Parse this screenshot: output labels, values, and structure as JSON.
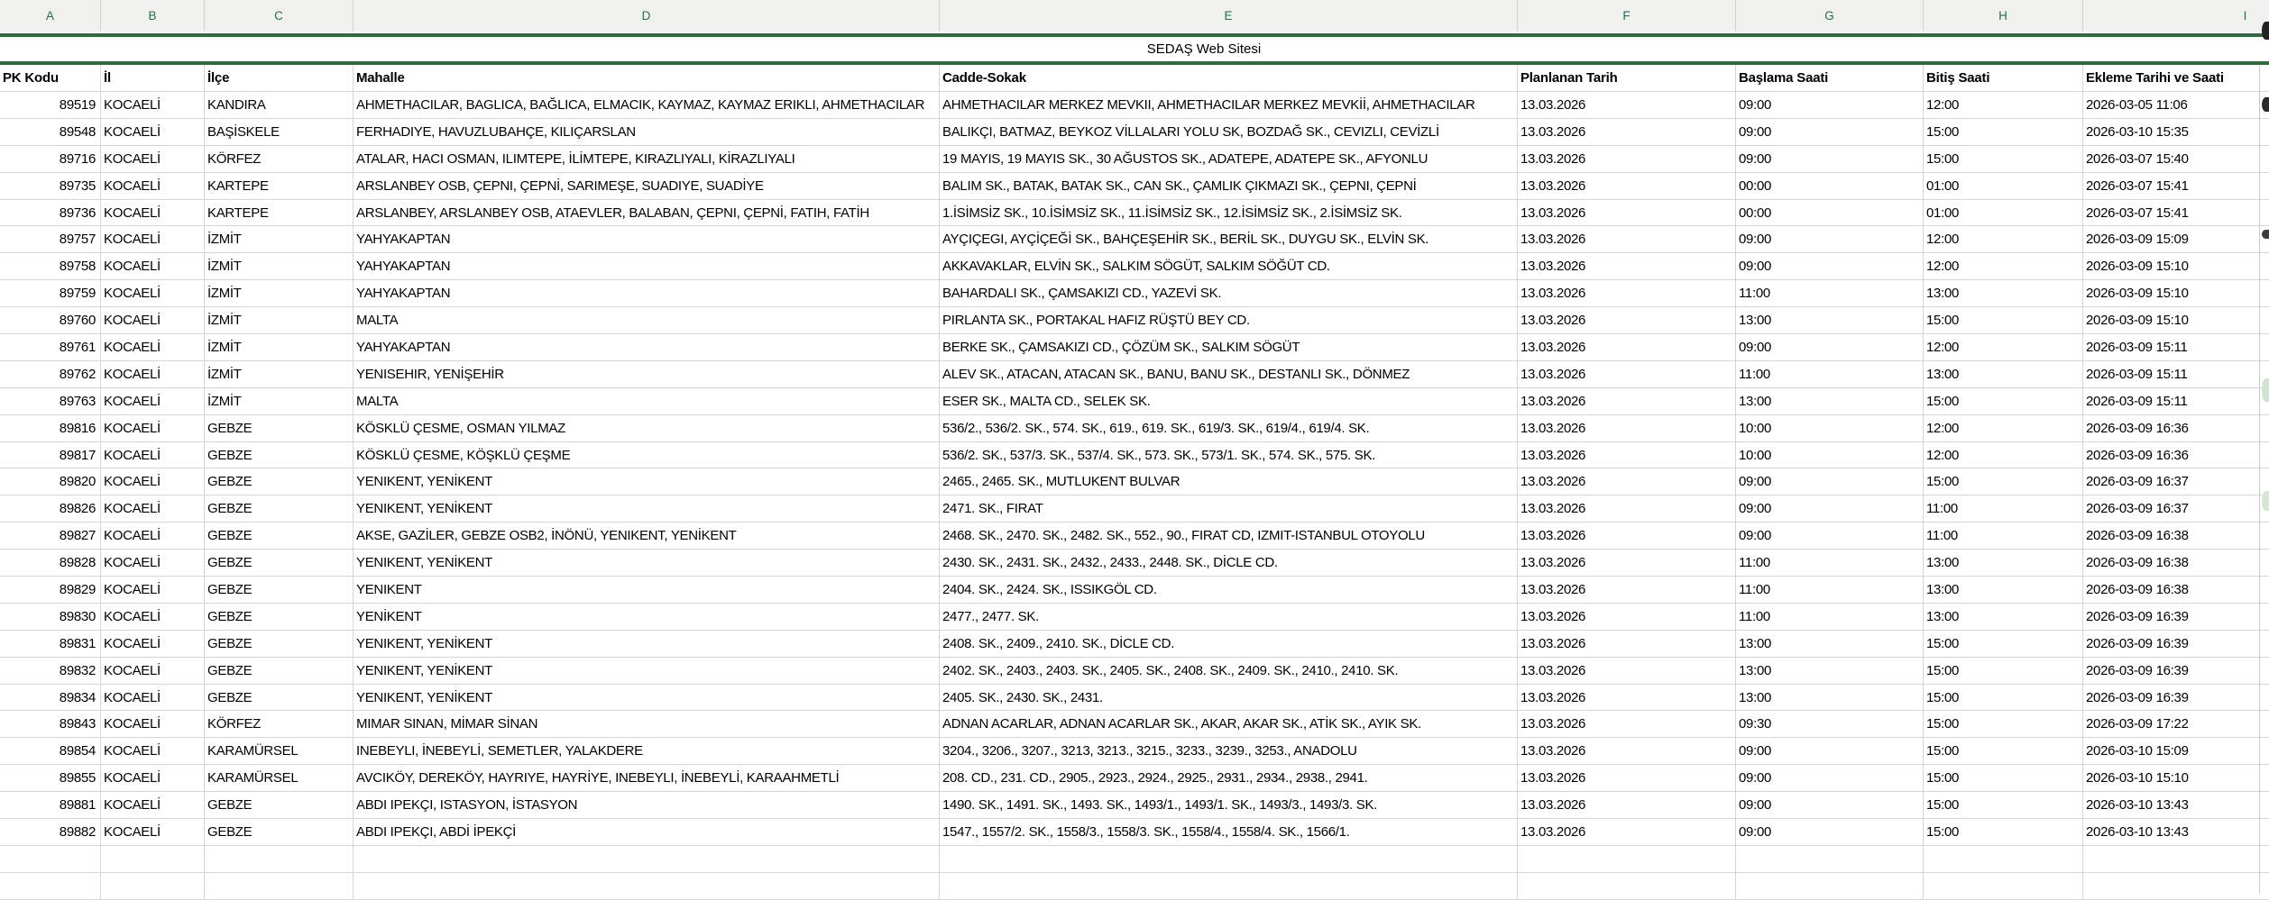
{
  "sheet": {
    "title": "SEDAŞ Web Sitesi",
    "column_letters": [
      "A",
      "B",
      "C",
      "D",
      "E",
      "F",
      "G",
      "H",
      "I"
    ],
    "headers": [
      "PK Kodu",
      "İl",
      "İlçe",
      "Mahalle",
      "Cadde-Sokak",
      "Planlanan Tarih",
      "Başlama Saati",
      "Bitiş Saati",
      "Ekleme Tarihi ve Saati"
    ],
    "rows": [
      [
        "89519",
        "KOCAELİ",
        "KANDIRA",
        "AHMETHACILAR, BAGLICA, BAĞLICA, ELMACIK, KAYMAZ, KAYMAZ ERIKLI, AHMETHACILAR",
        "AHMETHACILAR MERKEZ MEVKII, AHMETHACILAR MERKEZ MEVKİİ, AHMETHACILAR",
        "13.03.2026",
        "09:00",
        "12:00",
        "2026-03-05 11:06"
      ],
      [
        "89548",
        "KOCAELİ",
        "BAŞİSKELE",
        "FERHADIYE, HAVUZLUBAHÇE, KILIÇARSLAN",
        "BALIKÇI, BATMAZ, BEYKOZ VİLLALARI YOLU SK, BOZDAĞ SK., CEVIZLI, CEVİZLİ",
        "13.03.2026",
        "09:00",
        "15:00",
        "2026-03-10 15:35"
      ],
      [
        "89716",
        "KOCAELİ",
        "KÖRFEZ",
        "ATALAR, HACI OSMAN, ILIMTEPE, İLİMTEPE, KIRAZLIYALI, KİRAZLIYALI",
        "19 MAYIS, 19 MAYIS SK., 30 AĞUSTOS SK., ADATEPE, ADATEPE SK., AFYONLU",
        "13.03.2026",
        "09:00",
        "15:00",
        "2026-03-07 15:40"
      ],
      [
        "89735",
        "KOCAELİ",
        "KARTEPE",
        "ARSLANBEY OSB, ÇEPNI, ÇEPNİ, SARIMEŞE, SUADIYE, SUADİYE",
        "BALIM SK., BATAK, BATAK SK., CAN SK., ÇAMLIK ÇIKMAZI SK., ÇEPNI, ÇEPNİ",
        "13.03.2026",
        "00:00",
        "01:00",
        "2026-03-07 15:41"
      ],
      [
        "89736",
        "KOCAELİ",
        "KARTEPE",
        "ARSLANBEY, ARSLANBEY OSB, ATAEVLER, BALABAN, ÇEPNI, ÇEPNİ, FATIH, FATİH",
        "1.İSİMSİZ SK., 10.İSİMSİZ SK., 11.İSİMSİZ SK., 12.İSİMSİZ SK., 2.İSİMSİZ SK.",
        "13.03.2026",
        "00:00",
        "01:00",
        "2026-03-07 15:41"
      ],
      [
        "89757",
        "KOCAELİ",
        "İZMİT",
        "YAHYAKAPTAN",
        "AYÇIÇEGI, AYÇİÇEĞİ SK., BAHÇEŞEHİR SK., BERİL SK., DUYGU SK., ELVİN SK.",
        "13.03.2026",
        "09:00",
        "12:00",
        "2026-03-09 15:09"
      ],
      [
        "89758",
        "KOCAELİ",
        "İZMİT",
        "YAHYAKAPTAN",
        "AKKAVAKLAR, ELVİN SK., SALKIM SÖGÜT, SALKIM SÖĞÜT CD.",
        "13.03.2026",
        "09:00",
        "12:00",
        "2026-03-09 15:10"
      ],
      [
        "89759",
        "KOCAELİ",
        "İZMİT",
        "YAHYAKAPTAN",
        "BAHARDALI SK., ÇAMSAKIZI CD., YAZEVİ SK.",
        "13.03.2026",
        "11:00",
        "13:00",
        "2026-03-09 15:10"
      ],
      [
        "89760",
        "KOCAELİ",
        "İZMİT",
        "MALTA",
        "PIRLANTA SK., PORTAKAL HAFIZ RÜŞTÜ BEY CD.",
        "13.03.2026",
        "13:00",
        "15:00",
        "2026-03-09 15:10"
      ],
      [
        "89761",
        "KOCAELİ",
        "İZMİT",
        "YAHYAKAPTAN",
        "BERKE SK., ÇAMSAKIZI CD., ÇÖZÜM SK., SALKIM SÖGÜT",
        "13.03.2026",
        "09:00",
        "12:00",
        "2026-03-09 15:11"
      ],
      [
        "89762",
        "KOCAELİ",
        "İZMİT",
        "YENISEHIR, YENİŞEHİR",
        "ALEV SK., ATACAN, ATACAN SK., BANU, BANU SK., DESTANLI SK., DÖNMEZ",
        "13.03.2026",
        "11:00",
        "13:00",
        "2026-03-09 15:11"
      ],
      [
        "89763",
        "KOCAELİ",
        "İZMİT",
        "MALTA",
        "ESER SK., MALTA CD., SELEK SK.",
        "13.03.2026",
        "13:00",
        "15:00",
        "2026-03-09 15:11"
      ],
      [
        "89816",
        "KOCAELİ",
        "GEBZE",
        "KÖSKLÜ ÇESME, OSMAN YILMAZ",
        "536/2., 536/2. SK., 574. SK., 619., 619. SK., 619/3. SK., 619/4., 619/4. SK.",
        "13.03.2026",
        "10:00",
        "12:00",
        "2026-03-09 16:36"
      ],
      [
        "89817",
        "KOCAELİ",
        "GEBZE",
        "KÖSKLÜ ÇESME, KÖŞKLÜ ÇEŞME",
        "536/2. SK., 537/3. SK., 537/4. SK., 573. SK., 573/1. SK., 574. SK., 575. SK.",
        "13.03.2026",
        "10:00",
        "12:00",
        "2026-03-09 16:36"
      ],
      [
        "89820",
        "KOCAELİ",
        "GEBZE",
        "YENIKENT, YENİKENT",
        "2465., 2465. SK., MUTLUKENT BULVAR",
        "13.03.2026",
        "09:00",
        "15:00",
        "2026-03-09 16:37"
      ],
      [
        "89826",
        "KOCAELİ",
        "GEBZE",
        "YENIKENT, YENİKENT",
        "2471. SK., FIRAT",
        "13.03.2026",
        "09:00",
        "11:00",
        "2026-03-09 16:37"
      ],
      [
        "89827",
        "KOCAELİ",
        "GEBZE",
        "AKSE, GAZİLER, GEBZE OSB2, İNÖNÜ, YENIKENT, YENİKENT",
        "2468. SK., 2470. SK., 2482. SK., 552., 90., FIRAT CD, IZMIT-ISTANBUL OTOYOLU",
        "13.03.2026",
        "09:00",
        "11:00",
        "2026-03-09 16:38"
      ],
      [
        "89828",
        "KOCAELİ",
        "GEBZE",
        "YENIKENT, YENİKENT",
        "2430. SK., 2431. SK., 2432., 2433., 2448. SK., DİCLE CD.",
        "13.03.2026",
        "11:00",
        "13:00",
        "2026-03-09 16:38"
      ],
      [
        "89829",
        "KOCAELİ",
        "GEBZE",
        "YENIKENT",
        "2404. SK., 2424. SK., ISSIKGÖL CD.",
        "13.03.2026",
        "11:00",
        "13:00",
        "2026-03-09 16:38"
      ],
      [
        "89830",
        "KOCAELİ",
        "GEBZE",
        "YENİKENT",
        "2477., 2477. SK.",
        "13.03.2026",
        "11:00",
        "13:00",
        "2026-03-09 16:39"
      ],
      [
        "89831",
        "KOCAELİ",
        "GEBZE",
        "YENIKENT, YENİKENT",
        "2408. SK., 2409., 2410. SK., DİCLE CD.",
        "13.03.2026",
        "13:00",
        "15:00",
        "2026-03-09 16:39"
      ],
      [
        "89832",
        "KOCAELİ",
        "GEBZE",
        "YENIKENT, YENİKENT",
        "2402. SK., 2403., 2403. SK., 2405. SK., 2408. SK., 2409. SK., 2410., 2410. SK.",
        "13.03.2026",
        "13:00",
        "15:00",
        "2026-03-09 16:39"
      ],
      [
        "89834",
        "KOCAELİ",
        "GEBZE",
        "YENIKENT, YENİKENT",
        "2405. SK., 2430. SK., 2431.",
        "13.03.2026",
        "13:00",
        "15:00",
        "2026-03-09 16:39"
      ],
      [
        "89843",
        "KOCAELİ",
        "KÖRFEZ",
        "MIMAR SINAN, MİMAR SİNAN",
        "ADNAN ACARLAR, ADNAN ACARLAR SK., AKAR, AKAR SK., ATİK SK., AYIK SK.",
        "13.03.2026",
        "09:30",
        "15:00",
        "2026-03-09 17:22"
      ],
      [
        "89854",
        "KOCAELİ",
        "KARAMÜRSEL",
        "INEBEYLI, İNEBEYLİ, SEMETLER, YALAKDERE",
        "3204., 3206., 3207., 3213, 3213., 3215., 3233., 3239., 3253., ANADOLU",
        "13.03.2026",
        "09:00",
        "15:00",
        "2026-03-10 15:09"
      ],
      [
        "89855",
        "KOCAELİ",
        "KARAMÜRSEL",
        "AVCIKÖY, DEREKÖY, HAYRIYE, HAYRİYE, INEBEYLI, İNEBEYLİ, KARAAHMETLİ",
        "208. CD., 231. CD., 2905., 2923., 2924., 2925., 2931., 2934., 2938., 2941.",
        "13.03.2026",
        "09:00",
        "15:00",
        "2026-03-10 15:10"
      ],
      [
        "89881",
        "KOCAELİ",
        "GEBZE",
        "ABDI IPEKÇI, ISTASYON, İSTASYON",
        "1490. SK., 1491. SK., 1493. SK., 1493/1., 1493/1. SK., 1493/3., 1493/3. SK.",
        "13.03.2026",
        "09:00",
        "15:00",
        "2026-03-10 13:43"
      ],
      [
        "89882",
        "KOCAELİ",
        "GEBZE",
        "ABDI IPEKÇI, ABDİ İPEKÇİ",
        "1547., 1557/2. SK., 1558/3., 1558/3. SK., 1558/4., 1558/4. SK., 1566/1.",
        "13.03.2026",
        "09:00",
        "15:00",
        "2026-03-10 13:43"
      ]
    ],
    "empty_row_count": 2
  },
  "colors": {
    "accent_green": "#217346",
    "thick_border_green": "#2e6c3e",
    "gridline": "#d6d6d6",
    "column_strip_bg": "#f0f0ee"
  }
}
